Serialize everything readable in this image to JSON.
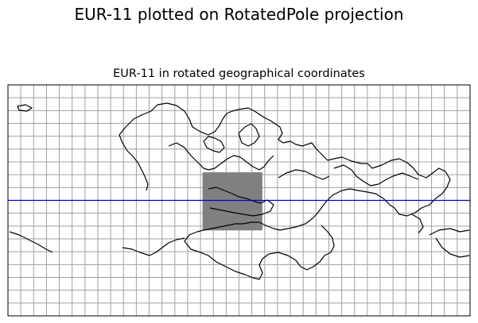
{
  "figure": {
    "suptitle": "EUR-11 plotted on RotatedPole projection",
    "axes_title": "EUR-11 in rotated geographical coordinates"
  },
  "map": {
    "projection": "RotatedPole",
    "extent_lon": [
      -180,
      180
    ],
    "extent_lat": [
      -90,
      90
    ],
    "gridlines": {
      "visible": true,
      "lon_step_deg": 10,
      "lat_step_deg": 10,
      "color": "#a0a0a0"
    },
    "coastlines": {
      "visible": true,
      "color": "#000000"
    },
    "domain_box": {
      "name": "EUR-11",
      "lon_range": [
        -28.4,
        18.2
      ],
      "lat_range": [
        -23.4,
        21.9
      ],
      "fill": "#808080"
    },
    "equator_line": {
      "lat": 0,
      "color": "#0000cc"
    },
    "frame_color": "#000000"
  }
}
